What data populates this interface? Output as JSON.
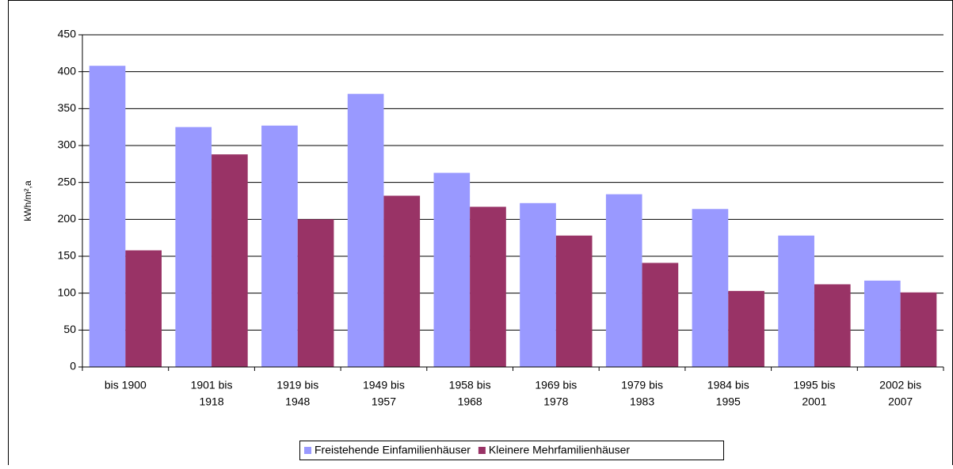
{
  "chart_data": {
    "type": "bar",
    "y_label": "kWh/m²,a",
    "categories": [
      [
        "bis 1900"
      ],
      [
        "1901 bis",
        "1918"
      ],
      [
        "1919 bis",
        "1948"
      ],
      [
        "1949 bis",
        "1957"
      ],
      [
        "1958 bis",
        "1968"
      ],
      [
        "1969 bis",
        "1978"
      ],
      [
        "1979 bis",
        "1983"
      ],
      [
        "1984 bis",
        "1995"
      ],
      [
        "1995 bis",
        "2001"
      ],
      [
        "2002 bis",
        "2007"
      ]
    ],
    "series": [
      {
        "name": "Freistehende Einfamilienhäuser",
        "color": "#9999ff",
        "values": [
          408,
          325,
          327,
          370,
          263,
          222,
          234,
          214,
          178,
          117
        ]
      },
      {
        "name": "Kleinere Mehrfamilienhäuser",
        "color": "#993366",
        "values": [
          158,
          288,
          200,
          232,
          217,
          178,
          141,
          103,
          112,
          101
        ]
      }
    ],
    "ylim": [
      0,
      450
    ],
    "yticks": [
      0,
      50,
      100,
      150,
      200,
      250,
      300,
      350,
      400,
      450
    ],
    "grid": true,
    "legend": "bottom"
  }
}
